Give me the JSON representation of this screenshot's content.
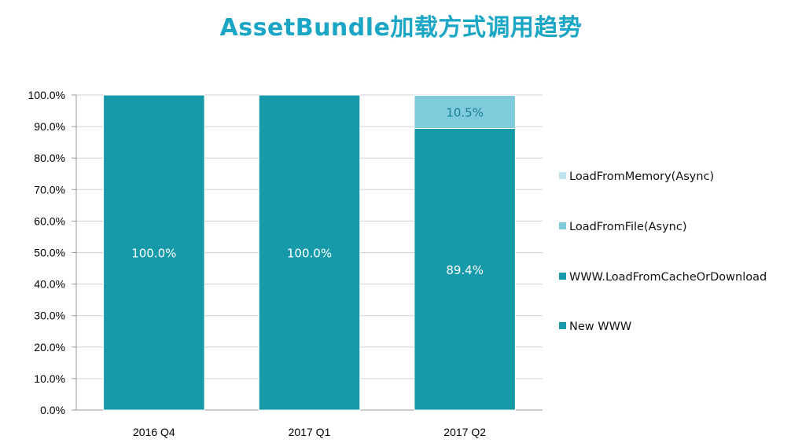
{
  "chart_data": {
    "type": "bar",
    "stacked": true,
    "title": "AssetBundle加载方式调用趋势",
    "categories": [
      "2016 Q4",
      "2017 Q1",
      "2017 Q2"
    ],
    "series": [
      {
        "name": "New WWW",
        "values": [
          0,
          0,
          0
        ],
        "color": "#169aaa",
        "labels": [
          "",
          "",
          ""
        ]
      },
      {
        "name": "WWW.LoadFromCacheOrDownload",
        "values": [
          100.0,
          100.0,
          89.4
        ],
        "color": "#169aaa",
        "labels": [
          "100.0%",
          "100.0%",
          "89.4%"
        ]
      },
      {
        "name": "LoadFromFile(Async)",
        "values": [
          0,
          0,
          10.5
        ],
        "color": "#7fcbdb",
        "labels": [
          "",
          "",
          "10.5%"
        ]
      },
      {
        "name": "LoadFromMemory(Async)",
        "values": [
          0,
          0,
          0
        ],
        "color": "#bfe3ec",
        "labels": [
          "",
          "",
          ""
        ]
      }
    ],
    "ylim": [
      0,
      100
    ],
    "yticks": [
      "0.0%",
      "10.0%",
      "20.0%",
      "30.0%",
      "40.0%",
      "50.0%",
      "60.0%",
      "70.0%",
      "80.0%",
      "90.0%",
      "100.0%"
    ],
    "grid": true,
    "legend_position": "right",
    "legend_order": [
      "LoadFromMemory(Async)",
      "LoadFromFile(Async)",
      "WWW.LoadFromCacheOrDownload",
      "New WWW"
    ],
    "colors": {
      "title": "#1aa6c4",
      "label_dark": "#ffffff",
      "label_light": "#1a7f8f",
      "grid": "#d0d0d0",
      "axis": "#9a9a9a"
    }
  }
}
